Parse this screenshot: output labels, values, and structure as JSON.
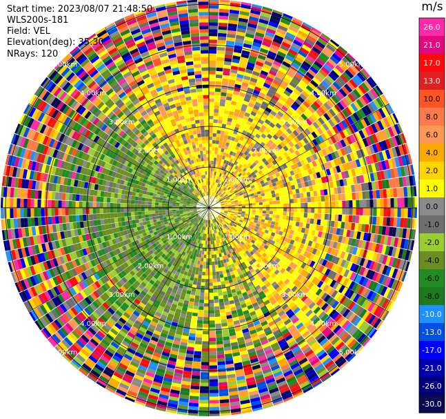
{
  "info": {
    "start_time": "Start time: 2023/08/07 21:48:50",
    "instrument": "WLS200s-181",
    "field": "Field: VEL",
    "elevation": "Elevation(deg): 35.30",
    "nrays": "NRays: 120"
  },
  "colorbar": {
    "unit": "m/s",
    "ticks": [
      "26.0",
      "21.0",
      "17.0",
      "13.0",
      "10.0",
      "8.0",
      "6.0",
      "4.0",
      "2.0",
      "1.0",
      "0.0",
      "-1.0",
      "-2.0",
      "-4.0",
      "-6.0",
      "-8.0",
      "-10.0",
      "-13.0",
      "-17.0",
      "-21.0",
      "-26.0",
      "-30.0"
    ],
    "colors": [
      "#ff2aa8",
      "#e4087e",
      "#ff0a0a",
      "#e02020",
      "#ff5522",
      "#ff7a4a",
      "#ff9955",
      "#ffaa00",
      "#ffd500",
      "#ffff00",
      "#8a8a8a",
      "#6e6e6e",
      "#9acd32",
      "#6b8e23",
      "#228b22",
      "#1e7a1e",
      "#1e90ff",
      "#0050e0",
      "#0000ff",
      "#0000b0",
      "#00007a",
      "#0a0a50"
    ]
  },
  "chart_data": {
    "type": "heatmap",
    "projection": "polar PPI",
    "field": "VEL",
    "units": "m/s",
    "nrays": 120,
    "range_rings": [
      "1.00km",
      "2.00km",
      "3.00km",
      "4.00km",
      "5.00km"
    ],
    "range_ring_values_km": [
      1,
      2,
      3,
      4,
      5
    ],
    "value_range": [
      -30,
      26
    ],
    "notes": "Near range (< ~4 km): positive velocities (yellow/orange) toward north-east and south, negative (green) toward west/south-west; outer ranges noisy multicolour."
  }
}
